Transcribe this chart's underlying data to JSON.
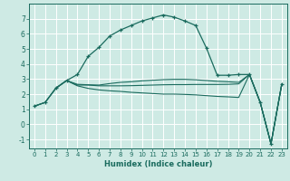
{
  "xlabel": "Humidex (Indice chaleur)",
  "bg_color": "#ceeae4",
  "grid_color": "#ffffff",
  "line_color": "#1a6b5e",
  "xlim": [
    -0.5,
    23.5
  ],
  "ylim": [
    -1.6,
    8.0
  ],
  "yticks": [
    -1,
    0,
    1,
    2,
    3,
    4,
    5,
    6,
    7
  ],
  "xticks": [
    0,
    1,
    2,
    3,
    4,
    5,
    6,
    7,
    8,
    9,
    10,
    11,
    12,
    13,
    14,
    15,
    16,
    17,
    18,
    19,
    20,
    21,
    22,
    23
  ],
  "curve1_x": [
    0,
    1,
    2,
    3,
    4,
    5,
    6,
    7,
    8,
    9,
    10,
    11,
    12,
    13,
    14,
    15,
    16,
    17,
    18,
    19,
    20,
    21,
    22,
    23
  ],
  "curve1_y": [
    1.2,
    1.45,
    2.4,
    2.9,
    3.3,
    4.5,
    5.1,
    5.85,
    6.25,
    6.55,
    6.85,
    7.05,
    7.25,
    7.1,
    6.85,
    6.55,
    5.05,
    3.25,
    3.25,
    3.3,
    3.3,
    1.45,
    -1.3,
    2.65
  ],
  "curve2_x": [
    0,
    1,
    2,
    3,
    4,
    5,
    6,
    7,
    8,
    9,
    10,
    11,
    12,
    13,
    14,
    15,
    16,
    17,
    18,
    19,
    20,
    21,
    22,
    23
  ],
  "curve2_y": [
    1.2,
    1.45,
    2.4,
    2.9,
    2.65,
    2.62,
    2.6,
    2.7,
    2.78,
    2.82,
    2.88,
    2.92,
    2.96,
    2.98,
    2.98,
    2.95,
    2.9,
    2.85,
    2.82,
    2.78,
    3.3,
    1.45,
    -1.3,
    2.65
  ],
  "curve3_x": [
    0,
    1,
    2,
    3,
    4,
    5,
    6,
    7,
    8,
    9,
    10,
    11,
    12,
    13,
    14,
    15,
    16,
    17,
    18,
    19,
    20,
    21,
    22,
    23
  ],
  "curve3_y": [
    1.2,
    1.45,
    2.38,
    2.9,
    2.55,
    2.38,
    2.28,
    2.22,
    2.18,
    2.12,
    2.08,
    2.04,
    2.0,
    2.0,
    1.98,
    1.95,
    1.9,
    1.85,
    1.82,
    1.78,
    3.3,
    1.45,
    -1.3,
    2.65
  ],
  "curve4_x": [
    2,
    3,
    4,
    5,
    6,
    7,
    8,
    9,
    10,
    11,
    12,
    13,
    14,
    15,
    16,
    17,
    18,
    19,
    20,
    21,
    22,
    23
  ],
  "curve4_y": [
    2.4,
    2.9,
    2.6,
    2.6,
    2.55,
    2.55,
    2.55,
    2.56,
    2.58,
    2.6,
    2.62,
    2.63,
    2.63,
    2.64,
    2.64,
    2.64,
    2.65,
    2.68,
    3.3,
    1.45,
    -1.3,
    2.65
  ]
}
